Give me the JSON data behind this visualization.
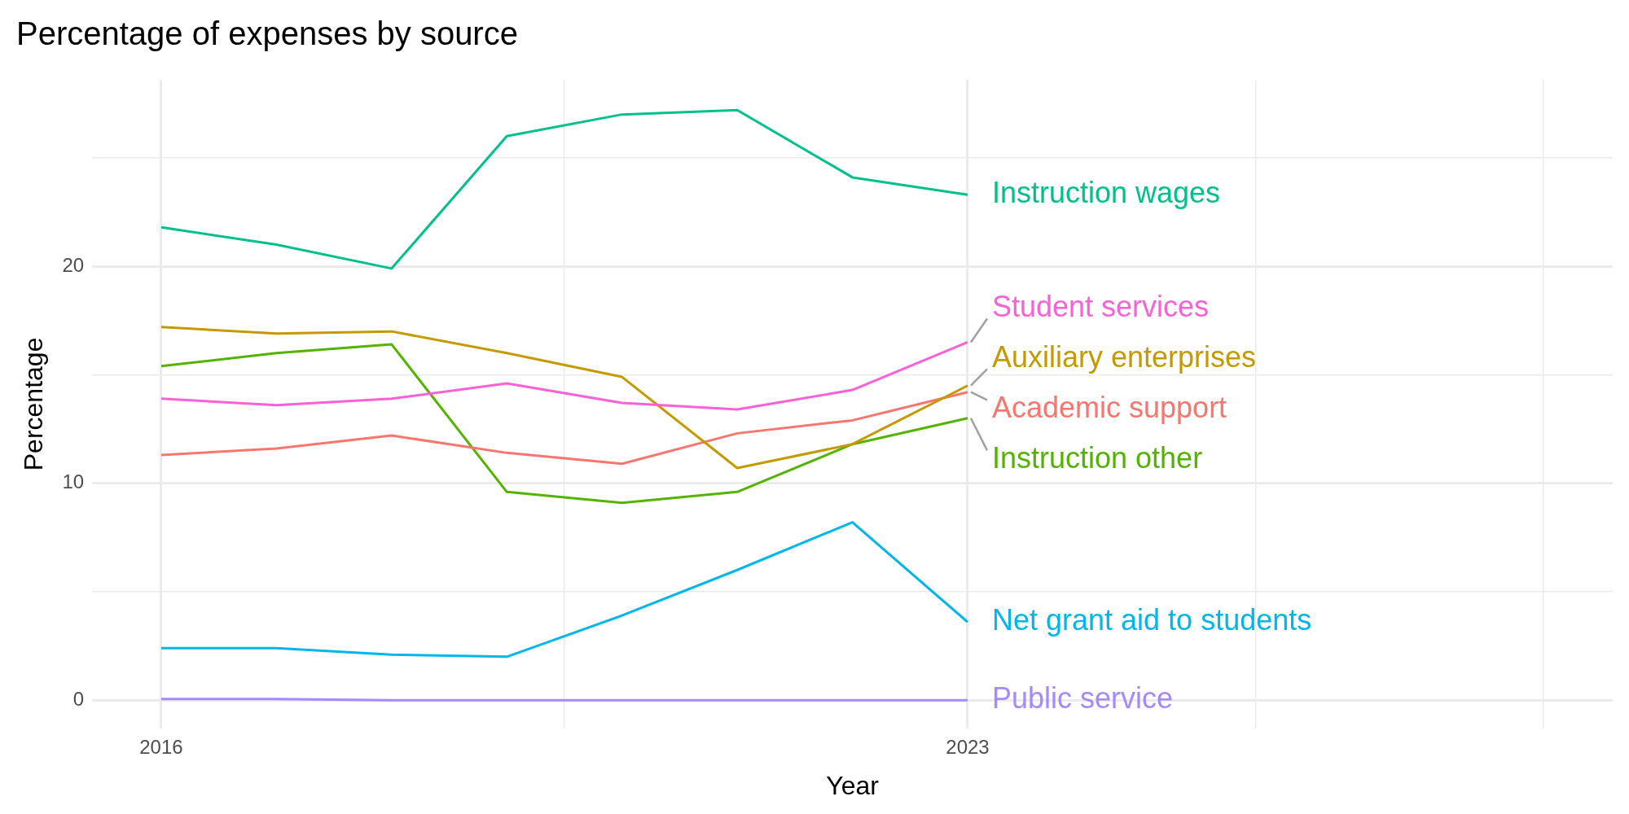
{
  "chart_data": {
    "type": "line",
    "title": "Percentage of expenses by source",
    "xlabel": "Year",
    "ylabel": "Percentage",
    "x": [
      2016,
      2017,
      2018,
      2019,
      2020,
      2021,
      2022,
      2023
    ],
    "xlim": [
      2015.4,
      2028.6
    ],
    "xticks": [
      2016,
      {
        "value": 2019.5,
        "label": null
      },
      2023,
      {
        "value": 2025.5,
        "label": null
      },
      {
        "value": 2028,
        "label": null
      }
    ],
    "ylim": [
      -1.3,
      28.6
    ],
    "yticks": [
      0,
      {
        "value": 5,
        "label": null
      },
      10,
      {
        "value": 15,
        "label": null
      },
      20,
      {
        "value": 25,
        "label": null
      }
    ],
    "grid": true,
    "legend": false,
    "marker": "none",
    "line_style": "solid",
    "series": [
      {
        "name": "Instruction wages",
        "color": "#00c08b",
        "values": [
          21.8,
          21.0,
          19.9,
          26.0,
          27.0,
          27.2,
          24.1,
          23.3
        ]
      },
      {
        "name": "Student services",
        "color": "#fb61d7",
        "values": [
          13.9,
          13.6,
          13.9,
          14.6,
          13.7,
          13.4,
          14.3,
          16.5
        ]
      },
      {
        "name": "Auxiliary enterprises",
        "color": "#c49a00",
        "values": [
          17.2,
          16.9,
          17.0,
          16.0,
          14.9,
          10.7,
          11.8,
          14.5
        ]
      },
      {
        "name": "Academic support",
        "color": "#f8766d",
        "values": [
          11.3,
          11.6,
          12.2,
          11.4,
          10.9,
          12.3,
          12.9,
          14.2
        ]
      },
      {
        "name": "Instruction other",
        "color": "#53b400",
        "values": [
          15.4,
          16.0,
          16.4,
          9.6,
          9.1,
          9.6,
          11.8,
          13.0
        ]
      },
      {
        "name": "Net grant aid to students",
        "color": "#00b6eb",
        "values": [
          2.4,
          2.4,
          2.1,
          2.0,
          3.9,
          6.0,
          8.2,
          3.6
        ]
      },
      {
        "name": "Public service",
        "color": "#a58aff",
        "values": [
          0.05,
          0.05,
          0,
          0,
          0,
          0,
          0,
          0
        ]
      }
    ]
  }
}
